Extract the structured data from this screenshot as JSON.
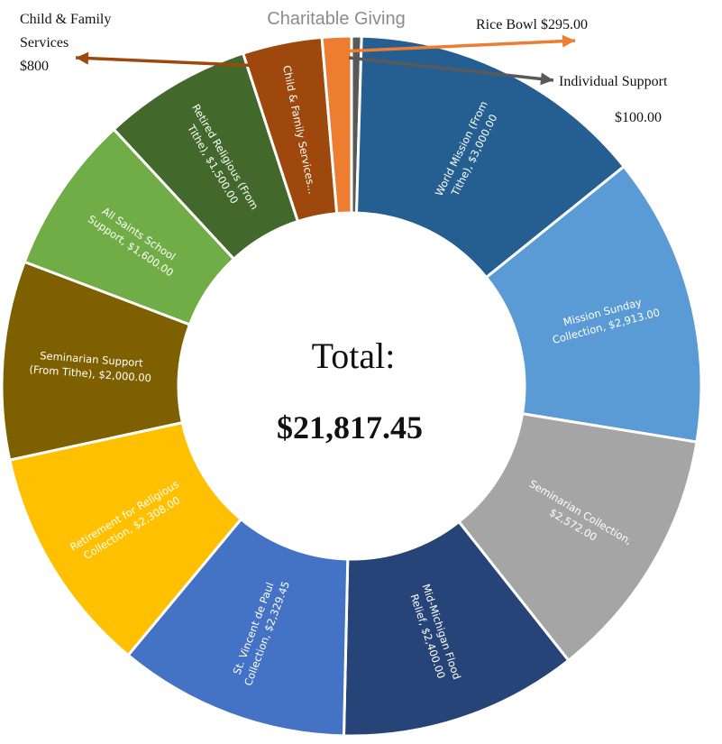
{
  "chart_data": {
    "type": "pie",
    "title": "Charitable Giving",
    "total_label": "Total:",
    "total_value": "$21,817.45",
    "slices": [
      {
        "label": "Individual Support",
        "value": 100.0,
        "color": "#595959",
        "text": []
      },
      {
        "label": "World Mission (From Tithe)",
        "value": 3000.0,
        "color": "#255e91",
        "text": [
          "World Mission (From",
          "Tithe), $3,000.00"
        ]
      },
      {
        "label": "Mission Sunday Collection",
        "value": 2913.0,
        "color": "#5b9bd5",
        "text": [
          "Mission Sunday",
          "Collection, $2,913.00"
        ]
      },
      {
        "label": "Seminarian Collection",
        "value": 2572.0,
        "color": "#a5a5a5",
        "text": [
          "Seminarian Collection,",
          "$2,572.00"
        ]
      },
      {
        "label": "Mid-Michigan Flood Relief",
        "value": 2400.0,
        "color": "#264478",
        "text": [
          "Mid-Michigan Flood",
          "Relief, $2,400.00"
        ]
      },
      {
        "label": "St. Vincent de Paul Collection",
        "value": 2329.45,
        "color": "#4472c4",
        "text": [
          "St. Vincent de Paul",
          "Collection, $2,329.45"
        ]
      },
      {
        "label": "Retirement for Religious Collection",
        "value": 2308.0,
        "color": "#ffc000",
        "text": [
          "Retirement for Religious",
          "Collection, $2,308.00"
        ]
      },
      {
        "label": "Seminarian Support (From Tithe)",
        "value": 2000.0,
        "color": "#7f6000",
        "text": [
          "Seminarian Support",
          "(From Tithe), $2,000.00"
        ]
      },
      {
        "label": "All Saints School Support",
        "value": 1600.0,
        "color": "#70ad47",
        "text": [
          "All Saints School",
          "Support, $1,600.00"
        ]
      },
      {
        "label": "Retired Religious (From Tithe)",
        "value": 1500.0,
        "color": "#43682b",
        "text": [
          "Retired Religious (From",
          "Tithe), $1,500.00"
        ]
      },
      {
        "label": "Child & Family Services",
        "value": 800.0,
        "color": "#9e480e",
        "text": [
          "Child & Family Services..."
        ]
      },
      {
        "label": "Rice Bowl",
        "value": 295.0,
        "color": "#ed7d31",
        "text": []
      }
    ],
    "callouts": [
      {
        "slice": "Child & Family Services",
        "lines": [
          "Child & Family",
          "Services",
          "$800"
        ],
        "color": "#9e480e"
      },
      {
        "slice": "Rice Bowl",
        "lines": [
          "Rice Bowl  $295.00"
        ],
        "color": "#ed7d31"
      },
      {
        "slice": "Individual Support",
        "lines": [
          "Individual Support",
          "$100.00"
        ],
        "color": "#595959"
      }
    ]
  }
}
